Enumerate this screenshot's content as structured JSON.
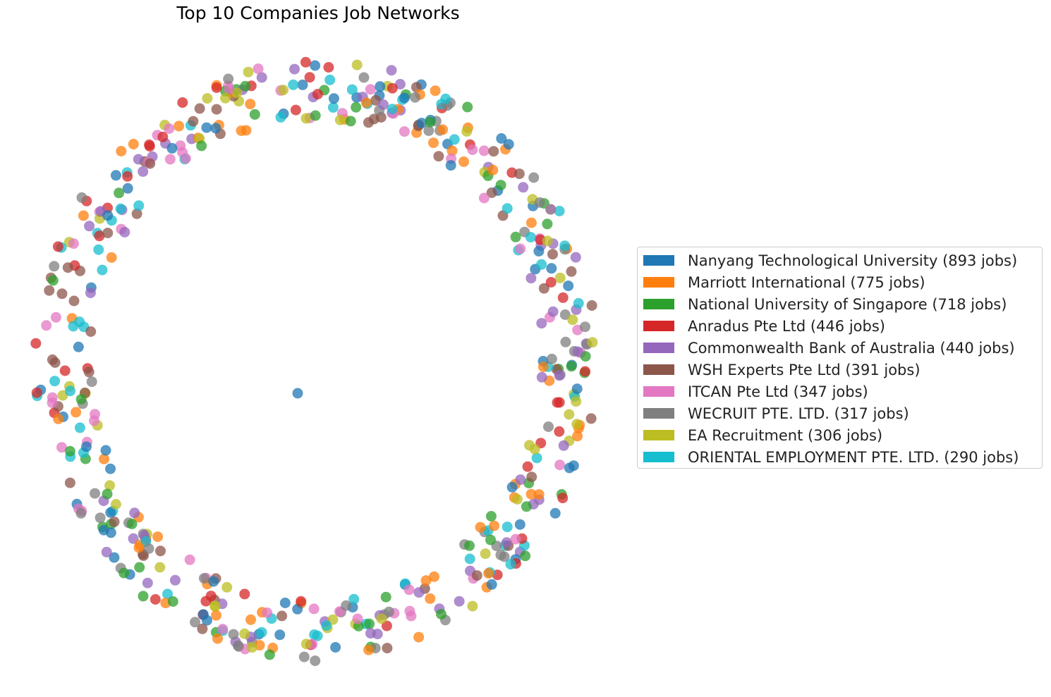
{
  "chart_data": {
    "type": "network",
    "title": "Top 10 Companies Job Networks",
    "layout": "circular ring of job nodes around a central node, colored by company",
    "legend_position": "center-right",
    "series": [
      {
        "name": "Nanyang Technological University (893 jobs)",
        "jobs": 893,
        "color": "#1f77b4"
      },
      {
        "name": "Marriott International (775 jobs)",
        "jobs": 775,
        "color": "#ff7f0e"
      },
      {
        "name": "National University of Singapore (718 jobs)",
        "jobs": 718,
        "color": "#2ca02c"
      },
      {
        "name": "Anradus Pte Ltd (446 jobs)",
        "jobs": 446,
        "color": "#d62728"
      },
      {
        "name": "Commonwealth Bank of Australia (440 jobs)",
        "jobs": 440,
        "color": "#9467bd"
      },
      {
        "name": "WSH Experts Pte Ltd (391 jobs)",
        "jobs": 391,
        "color": "#8c564b"
      },
      {
        "name": "ITCAN Pte Ltd (347 jobs)",
        "jobs": 347,
        "color": "#e377c2"
      },
      {
        "name": "WECRUIT PTE. LTD. (317 jobs)",
        "jobs": 317,
        "color": "#7f7f7f"
      },
      {
        "name": "EA Recruitment (306 jobs)",
        "jobs": 306,
        "color": "#bcbd22"
      },
      {
        "name": "ORIENTAL EMPLOYMENT PTE. LTD. (290 jobs)",
        "jobs": 290,
        "color": "#17becf"
      }
    ]
  }
}
